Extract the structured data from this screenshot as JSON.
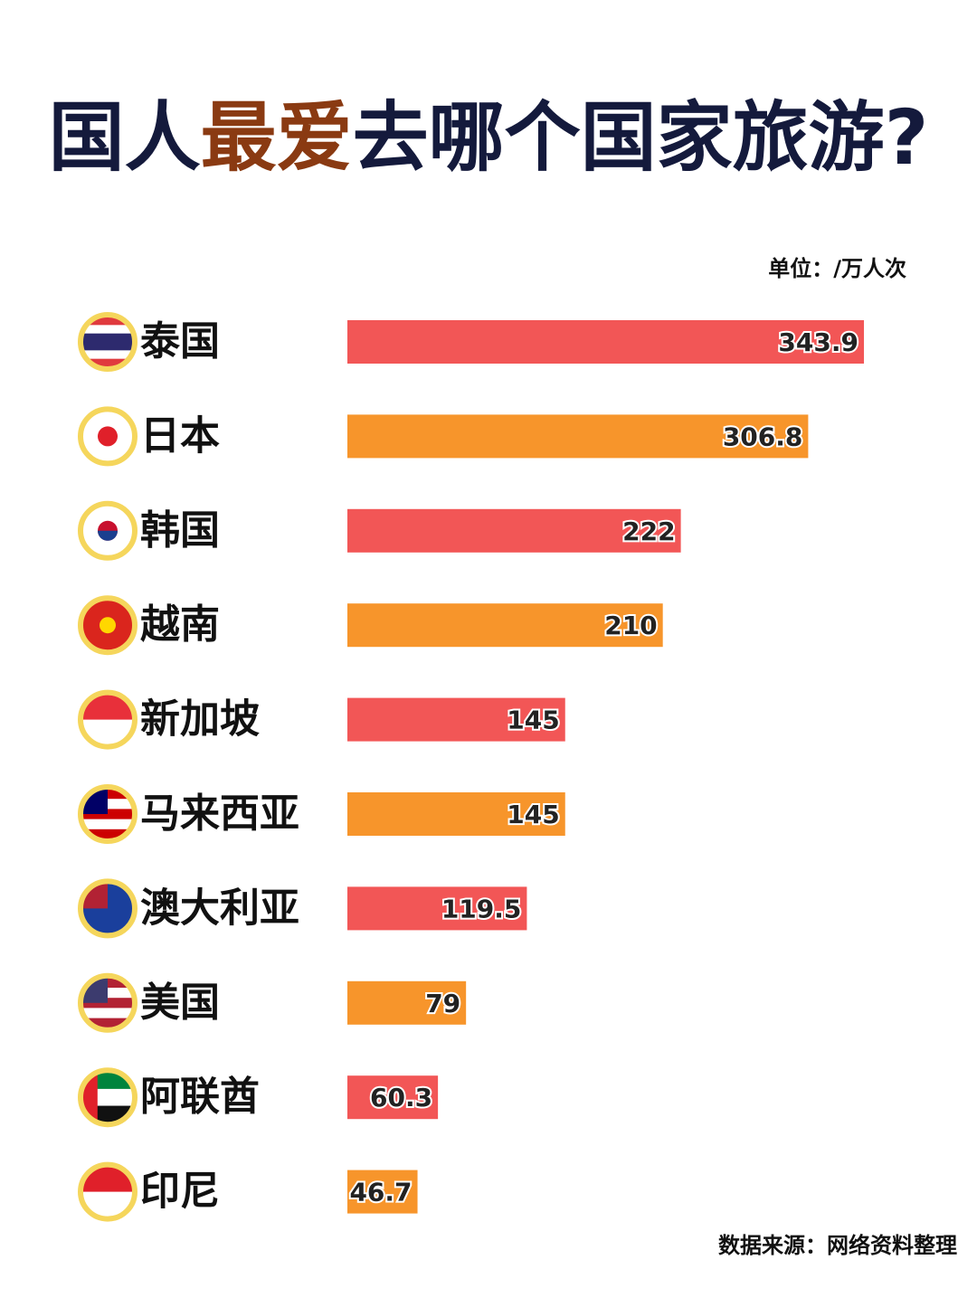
{
  "chart_data": {
    "type": "bar",
    "orientation": "horizontal",
    "title_segments": [
      {
        "text": "国人",
        "color": "#141a3c"
      },
      {
        "text": "最爱",
        "color": "#8a3a12"
      },
      {
        "text": "去哪个国家旅游?",
        "color": "#141a3c"
      }
    ],
    "unit": "单位：/万人次",
    "source": "数据来源：网络资料整理",
    "categories": [
      "泰国",
      "日本",
      "韩国",
      "越南",
      "新加坡",
      "马来西亚",
      "澳大利亚",
      "美国",
      "阿联酋",
      "印尼"
    ],
    "values": [
      343.9,
      306.8,
      222,
      210,
      145,
      145,
      119.5,
      79,
      60.3,
      46.7
    ],
    "colors": [
      "#f25656",
      "#f7952b",
      "#f25656",
      "#f7952b",
      "#f25656",
      "#f7952b",
      "#f25656",
      "#f7952b",
      "#f25656",
      "#f7952b"
    ]
  }
}
